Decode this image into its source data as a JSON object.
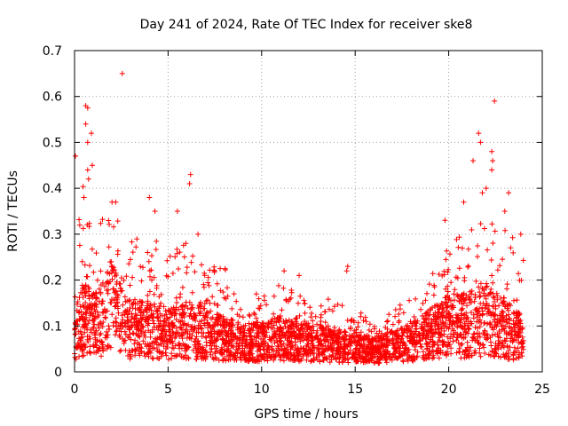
{
  "chart_data": {
    "type": "scatter",
    "title": "Day 241 of 2024, Rate Of TEC Index for receiver ske8",
    "xlabel": "GPS time / hours",
    "ylabel": "ROTI / TECUs",
    "xlim": [
      0,
      25
    ],
    "ylim": [
      0,
      0.7
    ],
    "xticks": [
      0,
      5,
      10,
      15,
      20,
      25
    ],
    "yticks": [
      0,
      0.1,
      0.2,
      0.3,
      0.4,
      0.5,
      0.6,
      0.7
    ],
    "xtick_labels": [
      "0",
      "5",
      "10",
      "15",
      "20",
      "25"
    ],
    "ytick_labels": [
      "0",
      "0.1",
      "0.2",
      "0.3",
      "0.4",
      "0.5",
      "0.6",
      "0.7"
    ],
    "grid": true,
    "marker": "+",
    "marker_color": "#ff0000",
    "data_range_x": [
      0,
      24
    ],
    "highlight_points": [
      {
        "x": 0.05,
        "y": 0.47
      },
      {
        "x": 0.6,
        "y": 0.58
      },
      {
        "x": 0.7,
        "y": 0.575
      },
      {
        "x": 0.6,
        "y": 0.54
      },
      {
        "x": 0.9,
        "y": 0.52
      },
      {
        "x": 0.7,
        "y": 0.5
      },
      {
        "x": 0.95,
        "y": 0.45
      },
      {
        "x": 0.7,
        "y": 0.44
      },
      {
        "x": 0.75,
        "y": 0.42
      },
      {
        "x": 0.5,
        "y": 0.38
      },
      {
        "x": 2.0,
        "y": 0.37
      },
      {
        "x": 2.2,
        "y": 0.37
      },
      {
        "x": 2.55,
        "y": 0.65
      },
      {
        "x": 4.0,
        "y": 0.38
      },
      {
        "x": 4.3,
        "y": 0.35
      },
      {
        "x": 5.5,
        "y": 0.35
      },
      {
        "x": 6.2,
        "y": 0.43
      },
      {
        "x": 6.15,
        "y": 0.41
      },
      {
        "x": 6.6,
        "y": 0.3
      },
      {
        "x": 5.95,
        "y": 0.28
      },
      {
        "x": 14.6,
        "y": 0.23
      },
      {
        "x": 14.55,
        "y": 0.22
      },
      {
        "x": 11.2,
        "y": 0.22
      },
      {
        "x": 12.0,
        "y": 0.21
      },
      {
        "x": 21.6,
        "y": 0.52
      },
      {
        "x": 21.7,
        "y": 0.5
      },
      {
        "x": 22.45,
        "y": 0.59
      },
      {
        "x": 22.3,
        "y": 0.48
      },
      {
        "x": 22.35,
        "y": 0.46
      },
      {
        "x": 21.3,
        "y": 0.46
      },
      {
        "x": 22.3,
        "y": 0.44
      },
      {
        "x": 21.8,
        "y": 0.39
      },
      {
        "x": 22.0,
        "y": 0.4
      },
      {
        "x": 23.2,
        "y": 0.39
      },
      {
        "x": 23.0,
        "y": 0.35
      },
      {
        "x": 20.8,
        "y": 0.37
      },
      {
        "x": 19.8,
        "y": 0.33
      },
      {
        "x": 23.85,
        "y": 0.3
      }
    ],
    "activity_profile": [
      {
        "x": 0.0,
        "typical": 0.08,
        "upper": 0.36
      },
      {
        "x": 0.5,
        "typical": 0.12,
        "upper": 0.4
      },
      {
        "x": 1.0,
        "typical": 0.1,
        "upper": 0.32
      },
      {
        "x": 2.0,
        "typical": 0.14,
        "upper": 0.34
      },
      {
        "x": 3.0,
        "typical": 0.09,
        "upper": 0.28
      },
      {
        "x": 4.0,
        "typical": 0.09,
        "upper": 0.3
      },
      {
        "x": 5.0,
        "typical": 0.08,
        "upper": 0.25
      },
      {
        "x": 6.0,
        "typical": 0.09,
        "upper": 0.28
      },
      {
        "x": 7.0,
        "typical": 0.08,
        "upper": 0.22
      },
      {
        "x": 8.0,
        "typical": 0.07,
        "upper": 0.22
      },
      {
        "x": 9.0,
        "typical": 0.06,
        "upper": 0.16
      },
      {
        "x": 10.0,
        "typical": 0.06,
        "upper": 0.16
      },
      {
        "x": 11.0,
        "typical": 0.07,
        "upper": 0.2
      },
      {
        "x": 12.0,
        "typical": 0.06,
        "upper": 0.17
      },
      {
        "x": 13.0,
        "typical": 0.06,
        "upper": 0.15
      },
      {
        "x": 14.0,
        "typical": 0.05,
        "upper": 0.16
      },
      {
        "x": 15.0,
        "typical": 0.05,
        "upper": 0.13
      },
      {
        "x": 16.0,
        "typical": 0.04,
        "upper": 0.1
      },
      {
        "x": 17.0,
        "typical": 0.05,
        "upper": 0.13
      },
      {
        "x": 18.0,
        "typical": 0.06,
        "upper": 0.15
      },
      {
        "x": 19.0,
        "typical": 0.08,
        "upper": 0.2
      },
      {
        "x": 20.0,
        "typical": 0.1,
        "upper": 0.27
      },
      {
        "x": 21.0,
        "typical": 0.1,
        "upper": 0.3
      },
      {
        "x": 22.0,
        "typical": 0.12,
        "upper": 0.33
      },
      {
        "x": 23.0,
        "typical": 0.09,
        "upper": 0.3
      },
      {
        "x": 24.0,
        "typical": 0.07,
        "upper": 0.28
      }
    ]
  }
}
